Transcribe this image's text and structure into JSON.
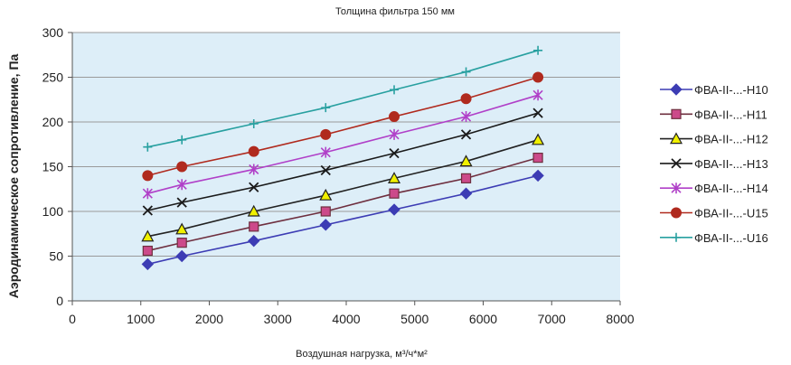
{
  "chart_data": {
    "type": "line",
    "title": "Толщина фильтра 150 мм",
    "xlabel": "Воздушная нагрузка, м³/ч*м²",
    "ylabel": "Аэродинамическое сопротивление, Па",
    "xlim": [
      0,
      8000
    ],
    "ylim": [
      0,
      300
    ],
    "xticks": [
      "0",
      "1000",
      "2000",
      "3000",
      "4000",
      "5000",
      "6000",
      "7000",
      "8000"
    ],
    "yticks": [
      "0",
      "50",
      "100",
      "150",
      "200",
      "250",
      "300"
    ],
    "grid": "horizontal",
    "legend_position": "right",
    "plot_background": "#ddeef8",
    "x": [
      1100,
      1600,
      2650,
      3700,
      4700,
      5750,
      6800
    ],
    "series": [
      {
        "name": "ФВА-II-...-Н10",
        "color": "#3c3cb4",
        "marker": "diamond",
        "values": [
          41,
          50,
          67,
          85,
          102,
          120,
          140
        ]
      },
      {
        "name": "ФВА-II-...-Н11",
        "color": "#6e2f3f",
        "fill": "#cc4a8a",
        "marker": "square",
        "values": [
          56,
          65,
          83,
          100,
          120,
          137,
          160
        ]
      },
      {
        "name": "ФВА-II-...-Н12",
        "color": "#222222",
        "fill": "#f0f000",
        "marker": "triangle",
        "values": [
          72,
          80,
          100,
          118,
          137,
          156,
          180
        ]
      },
      {
        "name": "ФВА-II-...-Н13",
        "color": "#1a1a1a",
        "marker": "x",
        "values": [
          101,
          110,
          127,
          146,
          165,
          186,
          210
        ]
      },
      {
        "name": "ФВА-II-...-Н14",
        "color": "#b040c8",
        "marker": "star",
        "values": [
          120,
          130,
          147,
          166,
          186,
          206,
          230
        ]
      },
      {
        "name": "ФВА-II-...-U15",
        "color": "#b02a1e",
        "marker": "circle",
        "values": [
          140,
          150,
          167,
          186,
          206,
          226,
          250
        ]
      },
      {
        "name": "ФВА-II-...-U16",
        "color": "#28a0a0",
        "marker": "plus",
        "values": [
          172,
          180,
          198,
          216,
          236,
          256,
          280
        ]
      }
    ]
  }
}
